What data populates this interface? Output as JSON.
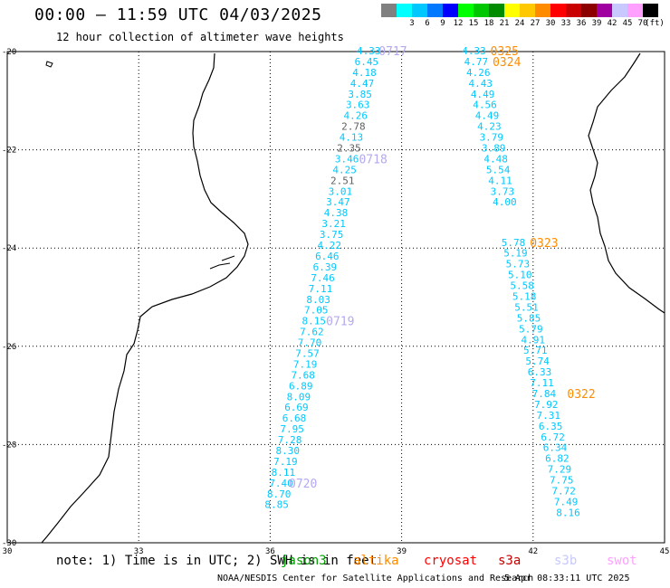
{
  "header": {
    "title": "00:00 – 11:59 UTC 04/03/2025",
    "subtitle": "12 hour collection of altimeter wave heights"
  },
  "legend": {
    "unit": "(ft)",
    "swatches": [
      {
        "color": "#808080",
        "label": ""
      },
      {
        "color": "#00ffff",
        "label": "3"
      },
      {
        "color": "#00c8ff",
        "label": "6"
      },
      {
        "color": "#0078ff",
        "label": "9"
      },
      {
        "color": "#0000ff",
        "label": "12"
      },
      {
        "color": "#00ff00",
        "label": "15"
      },
      {
        "color": "#00c800",
        "label": "18"
      },
      {
        "color": "#008c00",
        "label": "21"
      },
      {
        "color": "#ffff00",
        "label": "24"
      },
      {
        "color": "#ffc800",
        "label": "27"
      },
      {
        "color": "#ff8c00",
        "label": "30"
      },
      {
        "color": "#ff0000",
        "label": "33"
      },
      {
        "color": "#c80000",
        "label": "36"
      },
      {
        "color": "#8c0000",
        "label": "39"
      },
      {
        "color": "#a000a0",
        "label": "42"
      },
      {
        "color": "#c8c8ff",
        "label": "45"
      },
      {
        "color": "#ffa0ff",
        "label": "70"
      },
      {
        "color": "#000000",
        "label": ""
      }
    ]
  },
  "map": {
    "lon_ticks": [
      "30",
      "33",
      "36",
      "39",
      "42",
      "45"
    ],
    "lat_ticks": [
      "-20",
      "-22",
      "-24",
      "-26",
      "-28",
      "-30"
    ],
    "lon_range": [
      30,
      45
    ],
    "lat_range": [
      -20,
      -30
    ]
  },
  "tracks": [
    {
      "name": "track-a",
      "points": [
        {
          "lat": -20.0,
          "lon": 38.25,
          "v": "4.33"
        },
        {
          "lat": -20.22,
          "lon": 38.2,
          "v": "6.45"
        },
        {
          "lat": -20.44,
          "lon": 38.15,
          "v": "4.18"
        },
        {
          "lat": -20.66,
          "lon": 38.1,
          "v": "4.47"
        },
        {
          "lat": -20.88,
          "lon": 38.05,
          "v": "3.85"
        },
        {
          "lat": -21.1,
          "lon": 38.0,
          "v": "3.63"
        },
        {
          "lat": -21.32,
          "lon": 37.95,
          "v": "4.26"
        },
        {
          "lat": -21.54,
          "lon": 37.9,
          "v": "2.78",
          "gray": true
        },
        {
          "lat": -21.76,
          "lon": 37.85,
          "v": "4.13"
        },
        {
          "lat": -21.98,
          "lon": 37.8,
          "v": "2.35",
          "gray": true
        },
        {
          "lat": -22.2,
          "lon": 37.75,
          "v": "3.46"
        },
        {
          "lat": -22.42,
          "lon": 37.7,
          "v": "4.25"
        },
        {
          "lat": -22.64,
          "lon": 37.65,
          "v": "2.51",
          "gray": true
        },
        {
          "lat": -22.86,
          "lon": 37.6,
          "v": "3.01"
        },
        {
          "lat": -23.08,
          "lon": 37.55,
          "v": "3.47"
        },
        {
          "lat": -23.3,
          "lon": 37.5,
          "v": "4.38"
        },
        {
          "lat": -23.52,
          "lon": 37.45,
          "v": "3.21"
        },
        {
          "lat": -23.74,
          "lon": 37.4,
          "v": "3.75"
        },
        {
          "lat": -23.96,
          "lon": 37.35,
          "v": "4.22"
        },
        {
          "lat": -24.18,
          "lon": 37.3,
          "v": "6.46"
        },
        {
          "lat": -24.4,
          "lon": 37.25,
          "v": "6.39"
        },
        {
          "lat": -24.62,
          "lon": 37.2,
          "v": "7.46"
        },
        {
          "lat": -24.84,
          "lon": 37.15,
          "v": "7.11"
        },
        {
          "lat": -25.06,
          "lon": 37.1,
          "v": "8.03"
        },
        {
          "lat": -25.28,
          "lon": 37.05,
          "v": "7.05"
        },
        {
          "lat": -25.5,
          "lon": 37.0,
          "v": "8.15"
        },
        {
          "lat": -25.72,
          "lon": 36.95,
          "v": "7.62"
        },
        {
          "lat": -25.94,
          "lon": 36.9,
          "v": "7.70"
        },
        {
          "lat": -26.16,
          "lon": 36.85,
          "v": "7.57"
        },
        {
          "lat": -26.38,
          "lon": 36.8,
          "v": "7.19"
        },
        {
          "lat": -26.6,
          "lon": 36.75,
          "v": "7.68"
        },
        {
          "lat": -26.82,
          "lon": 36.7,
          "v": "6.89"
        },
        {
          "lat": -27.04,
          "lon": 36.65,
          "v": "8.09"
        },
        {
          "lat": -27.26,
          "lon": 36.6,
          "v": "6.69"
        },
        {
          "lat": -27.48,
          "lon": 36.55,
          "v": "6.68"
        },
        {
          "lat": -27.7,
          "lon": 36.5,
          "v": "7.95"
        },
        {
          "lat": -27.92,
          "lon": 36.45,
          "v": "7.28"
        },
        {
          "lat": -28.14,
          "lon": 36.4,
          "v": "8.30"
        },
        {
          "lat": -28.36,
          "lon": 36.35,
          "v": "7.19"
        },
        {
          "lat": -28.58,
          "lon": 36.3,
          "v": "8.11"
        },
        {
          "lat": -28.8,
          "lon": 36.25,
          "v": "7.40"
        },
        {
          "lat": -29.02,
          "lon": 36.2,
          "v": "8.70"
        },
        {
          "lat": -29.24,
          "lon": 36.15,
          "v": "8.85"
        }
      ],
      "time_labels": [
        {
          "lat": -20.0,
          "lon": 38.8,
          "t": "0717"
        },
        {
          "lat": -22.2,
          "lon": 38.35,
          "t": "0718"
        },
        {
          "lat": -25.5,
          "lon": 37.6,
          "t": "0719"
        },
        {
          "lat": -28.8,
          "lon": 36.75,
          "t": "0720"
        }
      ]
    },
    {
      "name": "track-b",
      "points": [
        {
          "lat": -20.0,
          "lon": 40.65,
          "v": "4.33"
        },
        {
          "lat": -20.22,
          "lon": 40.7,
          "v": "4.77"
        },
        {
          "lat": -20.44,
          "lon": 40.75,
          "v": "4.26"
        },
        {
          "lat": -20.66,
          "lon": 40.8,
          "v": "4.43"
        },
        {
          "lat": -20.88,
          "lon": 40.85,
          "v": "4.49"
        },
        {
          "lat": -21.1,
          "lon": 40.9,
          "v": "4.56"
        },
        {
          "lat": -21.32,
          "lon": 40.95,
          "v": "4.49"
        },
        {
          "lat": -21.54,
          "lon": 41.0,
          "v": "4.23"
        },
        {
          "lat": -21.76,
          "lon": 41.05,
          "v": "3.79"
        },
        {
          "lat": -21.98,
          "lon": 41.1,
          "v": "3.89"
        },
        {
          "lat": -22.2,
          "lon": 41.15,
          "v": "4.48"
        },
        {
          "lat": -22.42,
          "lon": 41.2,
          "v": "5.54"
        },
        {
          "lat": -22.64,
          "lon": 41.25,
          "v": "4.11"
        },
        {
          "lat": -22.86,
          "lon": 41.3,
          "v": "3.73"
        },
        {
          "lat": -23.08,
          "lon": 41.35,
          "v": "4.00"
        },
        {
          "lat": -23.9,
          "lon": 41.55,
          "v": "5.78"
        },
        {
          "lat": -24.12,
          "lon": 41.6,
          "v": "5.19"
        },
        {
          "lat": -24.34,
          "lon": 41.65,
          "v": "5.73"
        },
        {
          "lat": -24.56,
          "lon": 41.7,
          "v": "5.10"
        },
        {
          "lat": -24.78,
          "lon": 41.75,
          "v": "5.58"
        },
        {
          "lat": -25.0,
          "lon": 41.8,
          "v": "5.18"
        },
        {
          "lat": -25.22,
          "lon": 41.85,
          "v": "5.51"
        },
        {
          "lat": -25.44,
          "lon": 41.9,
          "v": "5.85"
        },
        {
          "lat": -25.66,
          "lon": 41.95,
          "v": "5.79"
        },
        {
          "lat": -25.88,
          "lon": 42.0,
          "v": "4.91"
        },
        {
          "lat": -26.1,
          "lon": 42.05,
          "v": "5.71"
        },
        {
          "lat": -26.32,
          "lon": 42.1,
          "v": "5.74"
        },
        {
          "lat": -26.54,
          "lon": 42.15,
          "v": "6.33"
        },
        {
          "lat": -26.76,
          "lon": 42.2,
          "v": "7.11"
        },
        {
          "lat": -26.98,
          "lon": 42.25,
          "v": "7.84"
        },
        {
          "lat": -27.2,
          "lon": 42.3,
          "v": "7.92"
        },
        {
          "lat": -27.42,
          "lon": 42.35,
          "v": "7.31"
        },
        {
          "lat": -27.64,
          "lon": 42.4,
          "v": "6.35"
        },
        {
          "lat": -27.86,
          "lon": 42.45,
          "v": "6.72"
        },
        {
          "lat": -28.08,
          "lon": 42.5,
          "v": "6.34"
        },
        {
          "lat": -28.3,
          "lon": 42.55,
          "v": "6.82"
        },
        {
          "lat": -28.52,
          "lon": 42.6,
          "v": "7.29"
        },
        {
          "lat": -28.74,
          "lon": 42.65,
          "v": "7.75"
        },
        {
          "lat": -28.96,
          "lon": 42.7,
          "v": "7.72"
        },
        {
          "lat": -29.18,
          "lon": 42.75,
          "v": "7.49"
        },
        {
          "lat": -29.4,
          "lon": 42.8,
          "v": "8.16"
        }
      ],
      "time_labels": [
        {
          "lat": -20.0,
          "lon": 41.35,
          "t": "0325"
        },
        {
          "lat": -20.22,
          "lon": 41.4,
          "t": "0324"
        },
        {
          "lat": -23.9,
          "lon": 42.25,
          "t": "0323"
        },
        {
          "lat": -26.98,
          "lon": 43.1,
          "t": "0322"
        }
      ]
    }
  ],
  "footer": {
    "note": "note: 1) Time is in UTC; 2) SWH is in feet",
    "satellites": [
      {
        "name": "jason3",
        "color": "#00a000"
      },
      {
        "name": "altika",
        "color": "#ff8c00"
      },
      {
        "name": "cryosat",
        "color": "#ff0000"
      },
      {
        "name": "s3a",
        "color": "#c80000"
      },
      {
        "name": "s3b",
        "color": "#c8c8ff"
      },
      {
        "name": "swot",
        "color": "#ffa0ff"
      }
    ],
    "credit": "NOAA/NESDIS Center for Satellite Applications and Research",
    "generated": "5 Apr 08:33:11 UTC 2025"
  }
}
